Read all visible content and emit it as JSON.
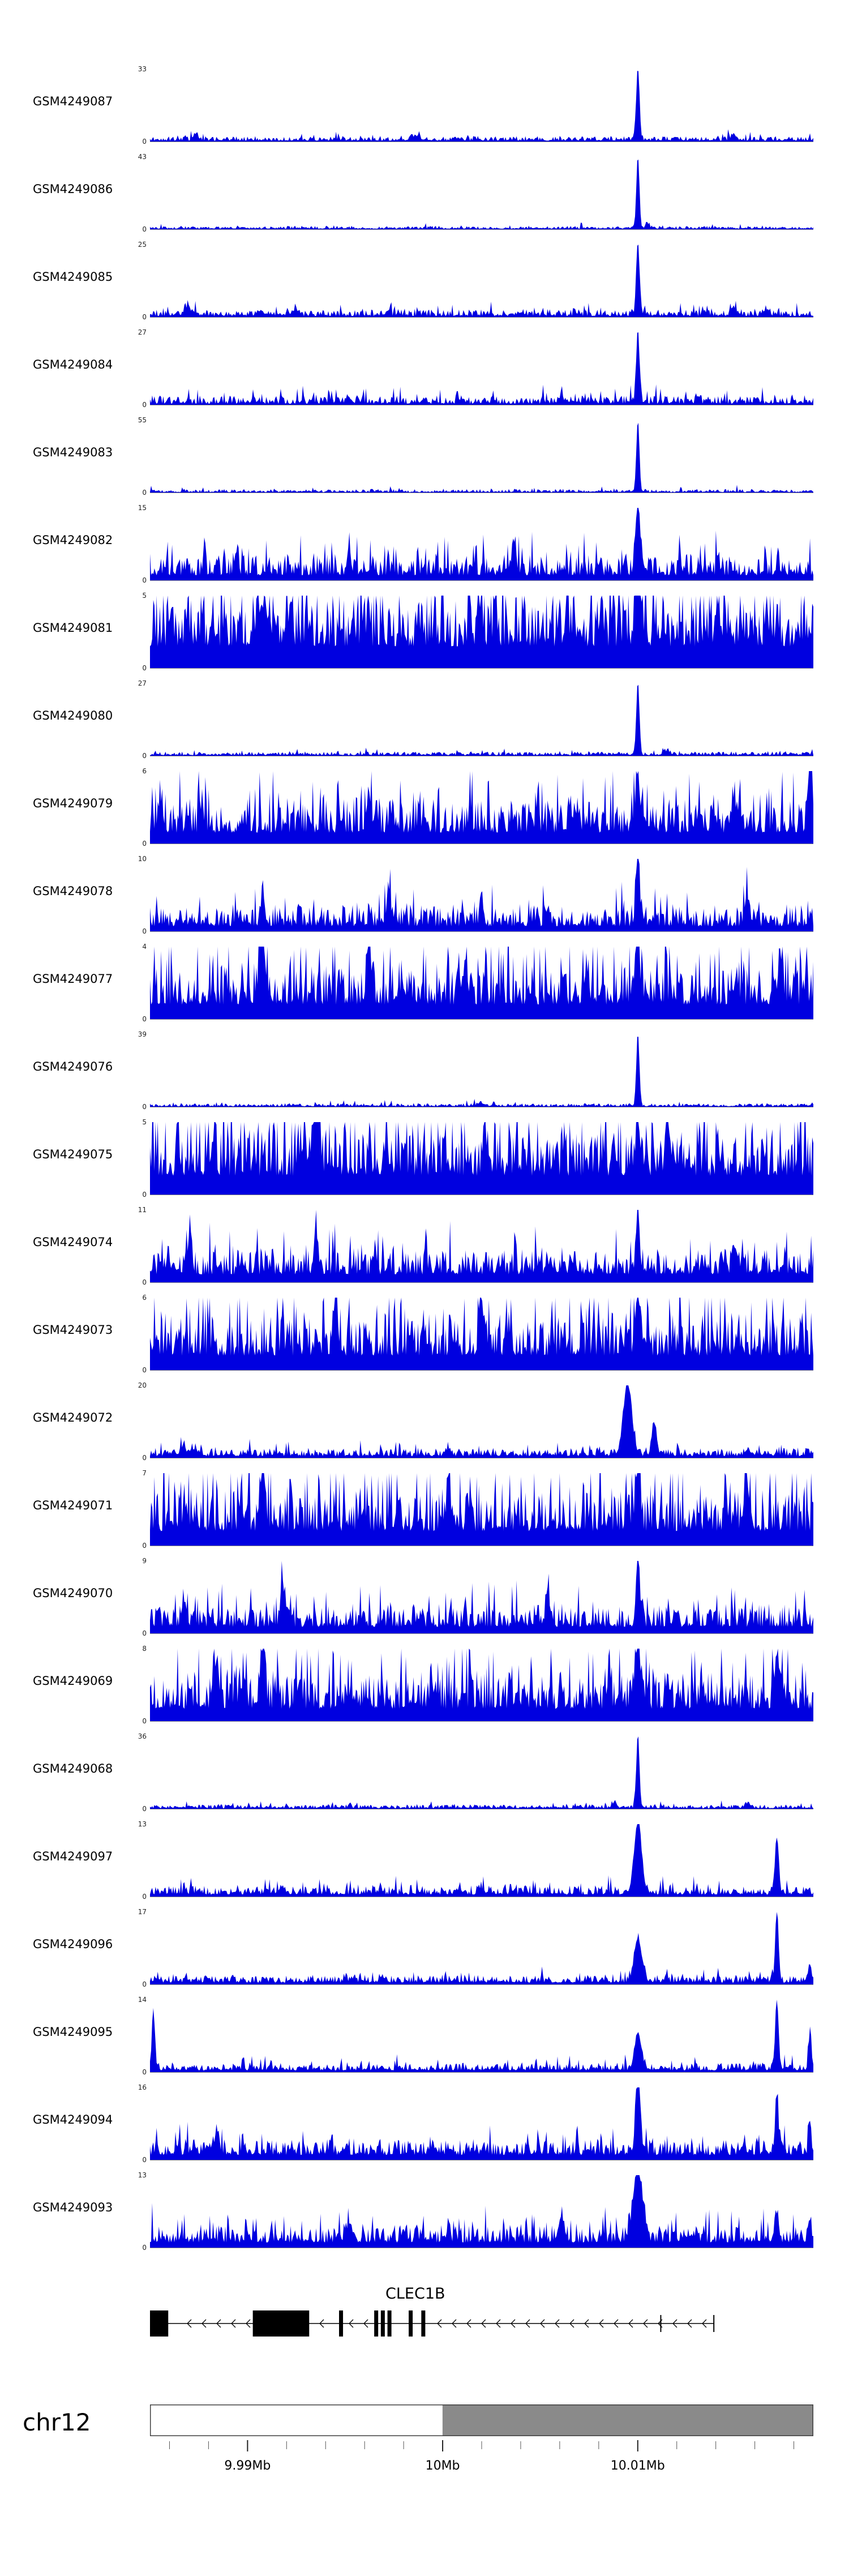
{
  "chart_data": {
    "type": "area",
    "description": "Genome browser read-coverage tracks for GEO samples over chr12 around CLEC1B",
    "signal_color": "#0000e0",
    "axis_line_color": "#8a8a8a",
    "x_axis": {
      "unit": "Mb",
      "start": 9.985,
      "end": 10.019,
      "major_ticks": [
        {
          "value": 9.99,
          "label": "9.99Mb"
        },
        {
          "value": 10.0,
          "label": "10Mb"
        },
        {
          "value": 10.01,
          "label": "10.01Mb"
        }
      ],
      "minor_tick_start": 9.986,
      "minor_tick_interval": 0.002,
      "minor_tick_count": 17
    },
    "gene": {
      "name": "CLEC1B",
      "strand": "-",
      "span": [
        0.0,
        0.85
      ],
      "label_pos": 0.4,
      "exons": [
        [
          0.0,
          0.0275
        ],
        [
          0.155,
          0.24
        ],
        [
          0.285,
          0.291
        ],
        [
          0.338,
          0.344
        ],
        [
          0.348,
          0.354
        ],
        [
          0.358,
          0.364
        ],
        [
          0.39,
          0.396
        ],
        [
          0.409,
          0.415
        ]
      ],
      "ticks": [
        0.77,
        0.85
      ]
    },
    "chromosome": {
      "label": "chr12",
      "bands": [
        {
          "x0": 0.0,
          "x1": 0.441,
          "fill": "#ffffff"
        },
        {
          "x0": 0.441,
          "x1": 1.0,
          "fill": "#8a8a8a"
        }
      ],
      "outline": "#404040"
    },
    "tracks": [
      {
        "label": "GSM4249087",
        "ymax": 33,
        "ymin": 0,
        "profile": {
          "base": 0.012,
          "amp": 0.06,
          "spike": 0.06,
          "peaks": [
            [
              0.7355,
              1.0,
              0.0035
            ],
            [
              0.4,
              0.05,
              0.01
            ],
            [
              0.88,
              0.07,
              0.006
            ],
            [
              0.07,
              0.05,
              0.006
            ]
          ]
        }
      },
      {
        "label": "GSM4249086",
        "ymax": 43,
        "ymin": 0,
        "profile": {
          "base": 0.008,
          "amp": 0.035,
          "spike": 0.03,
          "peaks": [
            [
              0.7355,
              1.0,
              0.0032
            ],
            [
              0.75,
              0.07,
              0.004
            ]
          ]
        }
      },
      {
        "label": "GSM4249085",
        "ymax": 25,
        "ymin": 0,
        "profile": {
          "base": 0.015,
          "amp": 0.09,
          "spike": 0.08,
          "peaks": [
            [
              0.7355,
              1.0,
              0.0035
            ],
            [
              0.055,
              0.1,
              0.006
            ],
            [
              0.88,
              0.12,
              0.005
            ],
            [
              0.93,
              0.08,
              0.005
            ]
          ]
        }
      },
      {
        "label": "GSM4249084",
        "ymax": 27,
        "ymin": 0,
        "profile": {
          "base": 0.015,
          "amp": 0.11,
          "spike": 0.08,
          "peaks": [
            [
              0.7355,
              1.0,
              0.0035
            ],
            [
              0.62,
              0.08,
              0.006
            ],
            [
              0.3,
              0.07,
              0.006
            ]
          ]
        }
      },
      {
        "label": "GSM4249083",
        "ymax": 55,
        "ymin": 0,
        "profile": {
          "base": 0.006,
          "amp": 0.04,
          "spike": 0.04,
          "peaks": [
            [
              0.7355,
              1.0,
              0.0032
            ]
          ]
        }
      },
      {
        "label": "GSM4249082",
        "ymax": 15,
        "ymin": 0,
        "profile": {
          "base": 0.07,
          "amp": 0.27,
          "spike": 0.12,
          "peaks": [
            [
              0.7355,
              1.0,
              0.005
            ],
            [
              0.3,
              0.35,
              0.004
            ],
            [
              0.55,
              0.3,
              0.004
            ],
            [
              0.13,
              0.3,
              0.004
            ]
          ]
        }
      },
      {
        "label": "GSM4249081",
        "ymax": 5,
        "ymin": 0,
        "profile": {
          "base": 0.3,
          "amp": 0.6,
          "spike": 0.25,
          "peaks": [
            [
              0.7355,
              0.85,
              0.006
            ],
            [
              0.17,
              0.5,
              0.012
            ]
          ]
        }
      },
      {
        "label": "GSM4249080",
        "ymax": 27,
        "ymin": 0,
        "profile": {
          "base": 0.01,
          "amp": 0.05,
          "spike": 0.05,
          "peaks": [
            [
              0.7355,
              1.0,
              0.0033
            ],
            [
              0.78,
              0.06,
              0.005
            ]
          ]
        }
      },
      {
        "label": "GSM4249079",
        "ymax": 6,
        "ymin": 0,
        "profile": {
          "base": 0.15,
          "amp": 0.42,
          "spike": 0.15,
          "peaks": [
            [
              0.995,
              0.95,
              0.005
            ],
            [
              0.33,
              0.5,
              0.005
            ],
            [
              0.7355,
              0.55,
              0.006
            ],
            [
              0.88,
              0.45,
              0.005
            ]
          ]
        }
      },
      {
        "label": "GSM4249078",
        "ymax": 10,
        "ymin": 0,
        "profile": {
          "base": 0.07,
          "amp": 0.28,
          "spike": 0.1,
          "peaks": [
            [
              0.7355,
              1.0,
              0.0038
            ],
            [
              0.17,
              0.45,
              0.004
            ],
            [
              0.36,
              0.5,
              0.004
            ],
            [
              0.9,
              0.4,
              0.005
            ],
            [
              0.5,
              0.35,
              0.004
            ]
          ]
        }
      },
      {
        "label": "GSM4249077",
        "ymax": 4,
        "ymin": 0,
        "profile": {
          "base": 0.2,
          "amp": 0.5,
          "spike": 0.2,
          "peaks": [
            [
              0.17,
              0.95,
              0.005
            ],
            [
              0.33,
              0.75,
              0.005
            ],
            [
              0.7355,
              0.5,
              0.006
            ],
            [
              0.95,
              0.6,
              0.005
            ]
          ]
        }
      },
      {
        "label": "GSM4249076",
        "ymax": 39,
        "ymin": 0,
        "profile": {
          "base": 0.008,
          "amp": 0.04,
          "spike": 0.04,
          "peaks": [
            [
              0.7355,
              1.0,
              0.0032
            ],
            [
              0.5,
              0.04,
              0.006
            ]
          ]
        }
      },
      {
        "label": "GSM4249075",
        "ymax": 5,
        "ymin": 0,
        "profile": {
          "base": 0.26,
          "amp": 0.58,
          "spike": 0.22,
          "peaks": [
            [
              0.78,
              0.9,
              0.004
            ],
            [
              0.25,
              0.75,
              0.007
            ],
            [
              0.7355,
              0.6,
              0.005
            ]
          ]
        }
      },
      {
        "label": "GSM4249074",
        "ymax": 11,
        "ymin": 0,
        "profile": {
          "base": 0.11,
          "amp": 0.33,
          "spike": 0.12,
          "peaks": [
            [
              0.7355,
              1.0,
              0.0035
            ],
            [
              0.25,
              0.65,
              0.004
            ],
            [
              0.06,
              0.45,
              0.004
            ],
            [
              0.88,
              0.4,
              0.004
            ]
          ]
        }
      },
      {
        "label": "GSM4249073",
        "ymax": 6,
        "ymin": 0,
        "profile": {
          "base": 0.2,
          "amp": 0.52,
          "spike": 0.2,
          "peaks": [
            [
              0.28,
              1.0,
              0.004
            ],
            [
              0.5,
              0.65,
              0.005
            ],
            [
              0.7355,
              0.85,
              0.005
            ]
          ]
        }
      },
      {
        "label": "GSM4249072",
        "ymax": 20,
        "ymin": 0,
        "profile": {
          "base": 0.025,
          "amp": 0.1,
          "spike": 0.08,
          "peaks": [
            [
              0.72,
              1.0,
              0.009
            ],
            [
              0.76,
              0.45,
              0.005
            ],
            [
              0.05,
              0.12,
              0.006
            ],
            [
              0.45,
              0.1,
              0.005
            ],
            [
              0.9,
              0.08,
              0.005
            ]
          ]
        }
      },
      {
        "label": "GSM4249071",
        "ymax": 7,
        "ymin": 0,
        "profile": {
          "base": 0.2,
          "amp": 0.52,
          "spike": 0.2,
          "peaks": [
            [
              0.17,
              1.0,
              0.0045
            ],
            [
              0.45,
              0.7,
              0.004
            ],
            [
              0.7355,
              0.75,
              0.005
            ],
            [
              0.9,
              0.6,
              0.006
            ]
          ]
        }
      },
      {
        "label": "GSM4249070",
        "ymax": 9,
        "ymin": 0,
        "profile": {
          "base": 0.09,
          "amp": 0.28,
          "spike": 0.1,
          "peaks": [
            [
              0.7355,
              1.0,
              0.004
            ],
            [
              0.2,
              0.4,
              0.005
            ],
            [
              0.6,
              0.35,
              0.005
            ],
            [
              0.05,
              0.3,
              0.004
            ]
          ]
        }
      },
      {
        "label": "GSM4249069",
        "ymax": 8,
        "ymin": 0,
        "profile": {
          "base": 0.17,
          "amp": 0.46,
          "spike": 0.16,
          "peaks": [
            [
              0.7355,
              1.0,
              0.005
            ],
            [
              0.17,
              0.85,
              0.005
            ],
            [
              0.1,
              0.6,
              0.005
            ],
            [
              0.95,
              0.5,
              0.005
            ]
          ]
        }
      },
      {
        "label": "GSM4249068",
        "ymax": 36,
        "ymin": 0,
        "profile": {
          "base": 0.01,
          "amp": 0.05,
          "spike": 0.05,
          "peaks": [
            [
              0.7355,
              1.0,
              0.0033
            ],
            [
              0.7,
              0.05,
              0.004
            ],
            [
              0.9,
              0.05,
              0.005
            ]
          ]
        }
      },
      {
        "label": "GSM4249097",
        "ymax": 13,
        "ymin": 0,
        "profile": {
          "base": 0.03,
          "amp": 0.12,
          "spike": 0.08,
          "peaks": [
            [
              0.7355,
              1.0,
              0.008
            ],
            [
              0.945,
              0.75,
              0.004
            ],
            [
              0.2,
              0.1,
              0.005
            ],
            [
              0.5,
              0.08,
              0.005
            ]
          ]
        }
      },
      {
        "label": "GSM4249096",
        "ymax": 17,
        "ymin": 0,
        "profile": {
          "base": 0.025,
          "amp": 0.1,
          "spike": 0.08,
          "peaks": [
            [
              0.7355,
              0.6,
              0.008
            ],
            [
              0.945,
              1.0,
              0.0035
            ],
            [
              0.995,
              0.25,
              0.003
            ],
            [
              0.35,
              0.08,
              0.005
            ]
          ]
        }
      },
      {
        "label": "GSM4249095",
        "ymax": 14,
        "ymin": 0,
        "profile": {
          "base": 0.025,
          "amp": 0.1,
          "spike": 0.08,
          "peaks": [
            [
              0.005,
              0.85,
              0.003
            ],
            [
              0.7355,
              0.5,
              0.007
            ],
            [
              0.945,
              1.0,
              0.0035
            ],
            [
              0.995,
              0.55,
              0.003
            ]
          ]
        }
      },
      {
        "label": "GSM4249094",
        "ymax": 16,
        "ymin": 0,
        "profile": {
          "base": 0.07,
          "amp": 0.2,
          "spike": 0.1,
          "peaks": [
            [
              0.7355,
              1.0,
              0.005
            ],
            [
              0.945,
              0.8,
              0.0035
            ],
            [
              0.1,
              0.25,
              0.005
            ],
            [
              0.995,
              0.3,
              0.003
            ]
          ]
        }
      },
      {
        "label": "GSM4249093",
        "ymax": 13,
        "ymin": 0,
        "profile": {
          "base": 0.07,
          "amp": 0.22,
          "spike": 0.1,
          "peaks": [
            [
              0.7355,
              1.0,
              0.01
            ],
            [
              0.62,
              0.35,
              0.006
            ],
            [
              0.945,
              0.4,
              0.004
            ],
            [
              0.995,
              0.3,
              0.003
            ],
            [
              0.3,
              0.25,
              0.005
            ]
          ]
        }
      }
    ]
  }
}
